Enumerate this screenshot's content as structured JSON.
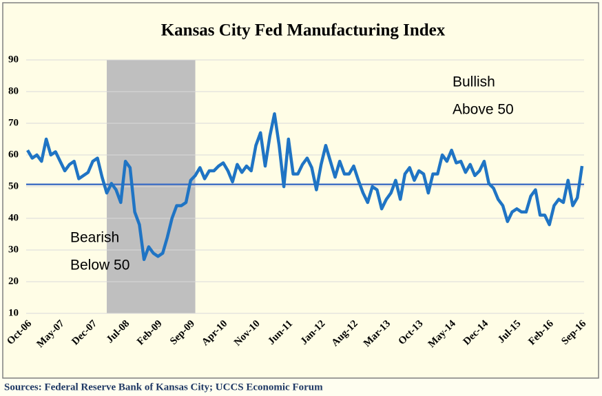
{
  "chart_data": {
    "type": "line",
    "title": "Kansas City Fed Manufacturing  Index",
    "source": "Sources: Federal Reserve Bank of Kansas City; UCCS Economic Forum",
    "annotations": [
      [
        "Bullish",
        "Above 50"
      ],
      [
        "Bearish",
        "Below 50"
      ]
    ],
    "categories": [
      "Oct-06",
      null,
      null,
      null,
      null,
      null,
      null,
      "May-07",
      null,
      null,
      null,
      null,
      null,
      null,
      "Dec-07",
      null,
      null,
      null,
      null,
      null,
      null,
      "Jul-08",
      null,
      null,
      null,
      null,
      null,
      null,
      "Feb-09",
      null,
      null,
      null,
      null,
      null,
      null,
      "Sep-09",
      null,
      null,
      null,
      null,
      null,
      null,
      "Apr-10",
      null,
      null,
      null,
      null,
      null,
      null,
      "Nov-10",
      null,
      null,
      null,
      null,
      null,
      null,
      "Jun-11",
      null,
      null,
      null,
      null,
      null,
      null,
      "Jan-12",
      null,
      null,
      null,
      null,
      null,
      null,
      "Aug-12",
      null,
      null,
      null,
      null,
      null,
      null,
      "Mar-13",
      null,
      null,
      null,
      null,
      null,
      null,
      "Oct-13",
      null,
      null,
      null,
      null,
      null,
      null,
      "May-14",
      null,
      null,
      null,
      null,
      null,
      null,
      "Dec-14",
      null,
      null,
      null,
      null,
      null,
      null,
      "Jul-15",
      null,
      null,
      null,
      null,
      null,
      null,
      "Feb-16",
      null,
      null,
      null,
      null,
      null,
      null,
      "Sep-16"
    ],
    "series": [
      {
        "color": "#1f74c4",
        "values": [
          61.5,
          59,
          60,
          58,
          65,
          60,
          61,
          58,
          55,
          57,
          58,
          52.5,
          53.5,
          54.5,
          58,
          59,
          53,
          48,
          51,
          49,
          45,
          58,
          56,
          42,
          38,
          27,
          31,
          29,
          28,
          29,
          34,
          40,
          44,
          44,
          45,
          52,
          53.5,
          56,
          52.5,
          55,
          55,
          56.5,
          57.5,
          55,
          51.5,
          57,
          54.5,
          56.5,
          55,
          63,
          67,
          56.5,
          66,
          73,
          63,
          50,
          65,
          54,
          54,
          57,
          59,
          56,
          49,
          57,
          63,
          58,
          53,
          58,
          54,
          54,
          56.5,
          52,
          48,
          45,
          50,
          49,
          43,
          46,
          48,
          52,
          46,
          54,
          56,
          52,
          55,
          54,
          48,
          54,
          54,
          60,
          58,
          61.5,
          57.5,
          58,
          54.5,
          57,
          53.5,
          55,
          58,
          51,
          49.5,
          46,
          44,
          39,
          42,
          43,
          42,
          42,
          47,
          49,
          41,
          41,
          38,
          44,
          46,
          45,
          52,
          44,
          46.5,
          56.5
        ]
      }
    ],
    "reference_line": {
      "value": 50.7,
      "color": "#4472c4"
    },
    "shaded_range": {
      "from": 17,
      "to": 36,
      "color": "#bfbfbf"
    },
    "ylim": [
      10,
      90
    ],
    "yticks": [
      10,
      20,
      30,
      40,
      50,
      60,
      70,
      80,
      90
    ],
    "grid": true
  }
}
